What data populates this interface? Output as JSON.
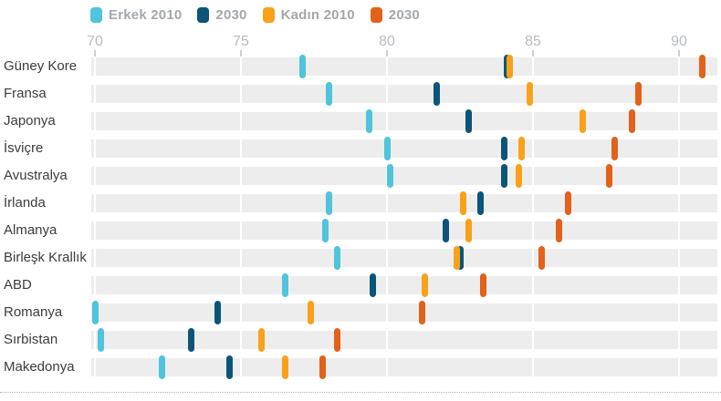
{
  "legend": [
    {
      "label": "Erkek 2010",
      "color": "#4fc4dc"
    },
    {
      "label": "2030",
      "color": "#0c5578"
    },
    {
      "label": "Kadın 2010",
      "color": "#f9a11b"
    },
    {
      "label": "2030",
      "color": "#e2611b"
    }
  ],
  "axis": {
    "ticks": [
      70,
      75,
      80,
      85,
      90
    ]
  },
  "colors": {
    "bar_background": "#ededed",
    "gridline": "#ffffff",
    "axis_label": "#b8bcc0",
    "row_label": "#3c3c3c",
    "legend_text": "#a3a8ac"
  },
  "chart_data": {
    "type": "scatter",
    "subtype": "dot-strip-plot",
    "title": "",
    "xlabel": "",
    "ylabel": "",
    "xlim": [
      69.9,
      91.5
    ],
    "x_ticks": [
      70,
      75,
      80,
      85,
      90
    ],
    "grid": "white tick lines over gray row bars",
    "legend_position": "top",
    "categories": [
      "Güney Kore",
      "Fransa",
      "Japonya",
      "İsviçre",
      "Avustralya",
      "İrlanda",
      "Almanya",
      "Birleşk Krallık",
      "ABD",
      "Romanya",
      "Sırbistan",
      "Makedonya"
    ],
    "series": [
      {
        "name": "Erkek 2010",
        "color": "#4fc4dc",
        "values": [
          77.1,
          78.0,
          79.4,
          80.0,
          80.1,
          78.0,
          77.9,
          78.3,
          76.5,
          70.0,
          70.2,
          72.3
        ]
      },
      {
        "name": "Erkek 2030",
        "color": "#0c5578",
        "values": [
          84.1,
          81.7,
          82.8,
          84.0,
          84.0,
          83.2,
          82.0,
          82.5,
          79.5,
          74.2,
          73.3,
          74.6
        ]
      },
      {
        "name": "Kadın 2010",
        "color": "#f9a11b",
        "values": [
          84.2,
          84.9,
          86.7,
          84.6,
          84.5,
          82.6,
          82.8,
          82.4,
          81.3,
          77.4,
          75.7,
          76.5
        ]
      },
      {
        "name": "Kadın 2030",
        "color": "#e2611b",
        "values": [
          90.8,
          88.6,
          88.4,
          87.8,
          87.6,
          86.2,
          85.9,
          85.3,
          83.3,
          81.2,
          78.3,
          77.8
        ]
      }
    ]
  }
}
